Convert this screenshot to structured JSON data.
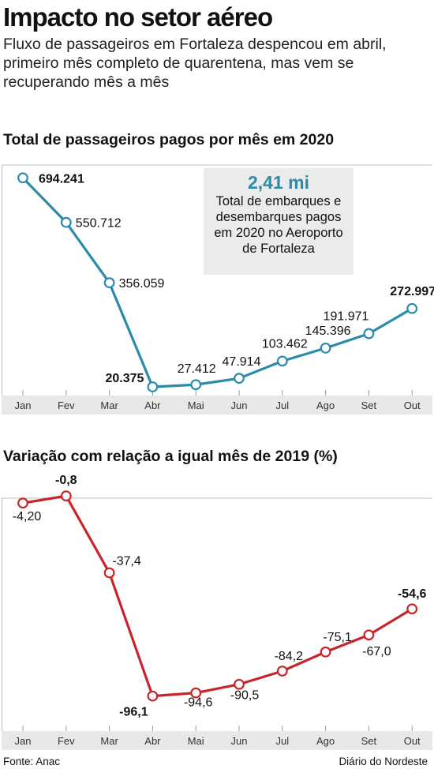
{
  "header": {
    "title": "Impacto no setor aéreo",
    "subtitle": "Fluxo de passageiros em Fortaleza despencou em abril, primeiro mês completo de quarentena, mas vem se recuperando mês a mês"
  },
  "callout": {
    "value": "2,41 mi",
    "text": "Total de embarques e desembarques pagos em 2020 no Aeroporto de Fortaleza"
  },
  "colors": {
    "line1": "#2b8bab",
    "line2": "#c8252a",
    "axis_band": "#e8e8e8"
  },
  "chart_data": [
    {
      "type": "line",
      "title": "Total de passageiros pagos por mês em 2020",
      "categories": [
        "Jan",
        "Fev",
        "Mar",
        "Abr",
        "Mai",
        "Jun",
        "Jul",
        "Ago",
        "Set",
        "Out"
      ],
      "values": [
        694241,
        550712,
        356059,
        20375,
        27412,
        47914,
        103462,
        145396,
        191971,
        272997
      ],
      "labels": [
        "694.241",
        "550.712",
        "356.059",
        "20.375",
        "27.412",
        "47.914",
        "103.462",
        "145.396",
        "191.971",
        "272.997"
      ],
      "bold_labels": [
        0,
        3,
        9
      ],
      "ylim": [
        0,
        700000
      ],
      "grid": false
    },
    {
      "type": "line",
      "title": "Variação com relação a igual mês de 2019 (%)",
      "categories": [
        "Jan",
        "Fev",
        "Mar",
        "Abr",
        "Mai",
        "Jun",
        "Jul",
        "Ago",
        "Set",
        "Out"
      ],
      "values": [
        -4.2,
        -0.8,
        -37.4,
        -96.1,
        -94.6,
        -90.5,
        -84.2,
        -75.1,
        -67.0,
        -54.6
      ],
      "labels": [
        "-4,20",
        "-0,8",
        "-37,4",
        "-96,1",
        "-94,6",
        "-90,5",
        "-84,2",
        "-75,1",
        "-67,0",
        "-54,6"
      ],
      "bold_labels": [
        1,
        3,
        9
      ],
      "ylim": [
        -100,
        0
      ],
      "grid": false
    }
  ],
  "footer": {
    "source": "Fonte: Anac",
    "credit": "Diário do Nordeste"
  }
}
